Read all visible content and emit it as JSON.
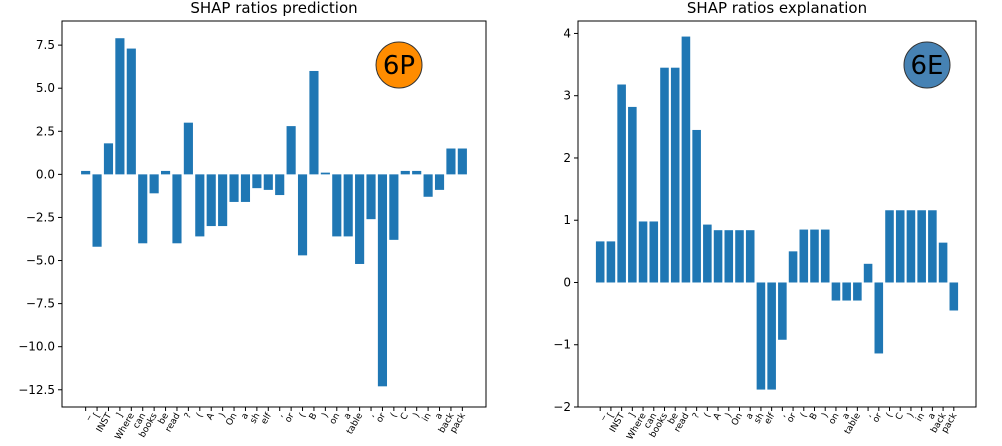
{
  "chart_data": [
    {
      "type": "bar",
      "title": "SHAP ratios prediction",
      "xlabel": "",
      "ylabel": "",
      "categories": [
        "_",
        "[",
        "INST",
        "]",
        "Where",
        "can",
        "books",
        "be",
        "read",
        "?",
        "(",
        "A",
        ")",
        "On",
        "a",
        "sh",
        "elf",
        ",",
        "or",
        "(",
        "B",
        ")",
        "on",
        "a",
        "table",
        ",",
        "or",
        "(",
        "C",
        ")",
        "in",
        "a",
        "back",
        "pack"
      ],
      "values": [
        0.2,
        -4.2,
        1.8,
        7.9,
        7.3,
        -4.0,
        -1.1,
        0.2,
        -4.0,
        3.0,
        -3.6,
        -3.0,
        -3.0,
        -1.6,
        -1.6,
        -0.8,
        -0.9,
        -1.2,
        2.8,
        -4.7,
        6.0,
        0.1,
        -3.6,
        -3.6,
        -5.2,
        -2.6,
        -12.3,
        -3.8,
        0.2,
        0.2,
        -1.3,
        -0.9,
        1.5,
        1.5
      ],
      "ylim": [
        -13.5,
        8.9
      ],
      "yticks": [
        7.5,
        5.0,
        2.5,
        0.0,
        -2.5,
        -5.0,
        -7.5,
        -10.0,
        -12.5
      ],
      "ytick_labels": [
        "7.5",
        "5.0",
        "2.5",
        "0.0",
        "−2.5",
        "−5.0",
        "−7.5",
        "−10.0",
        "−12.5"
      ],
      "grid": false,
      "bar_color": "#1f77b4",
      "badge": {
        "text": "6P",
        "color": "#ff8c00"
      }
    },
    {
      "type": "bar",
      "title": "SHAP ratios explanation",
      "xlabel": "",
      "ylabel": "",
      "categories": [
        "_",
        "[",
        "INST",
        "]",
        "Where",
        "can",
        "books",
        "be",
        "read",
        "?",
        "(",
        "A",
        ")",
        "On",
        "a",
        "sh",
        "elf",
        ",",
        "or",
        "(",
        "B",
        ")",
        "on",
        "a",
        "table",
        ",",
        "or",
        "(",
        "C",
        ")",
        "in",
        "a",
        "back",
        "pack"
      ],
      "values": [
        0.66,
        0.66,
        3.18,
        2.82,
        0.98,
        0.98,
        3.45,
        3.45,
        3.95,
        2.45,
        0.93,
        0.84,
        0.84,
        0.84,
        0.84,
        -1.72,
        -1.72,
        -0.92,
        0.5,
        0.85,
        0.85,
        0.85,
        -0.29,
        -0.29,
        -0.29,
        0.3,
        -1.14,
        1.16,
        1.16,
        1.16,
        1.16,
        1.16,
        0.64,
        -0.45
      ],
      "ylim": [
        -2.0,
        4.2
      ],
      "yticks": [
        4,
        3,
        2,
        1,
        0,
        -1,
        -2
      ],
      "ytick_labels": [
        "4",
        "3",
        "2",
        "1",
        "0",
        "−1",
        "−2"
      ],
      "grid": false,
      "bar_color": "#1f77b4",
      "badge": {
        "text": "6E",
        "color": "#4682b4"
      }
    }
  ]
}
